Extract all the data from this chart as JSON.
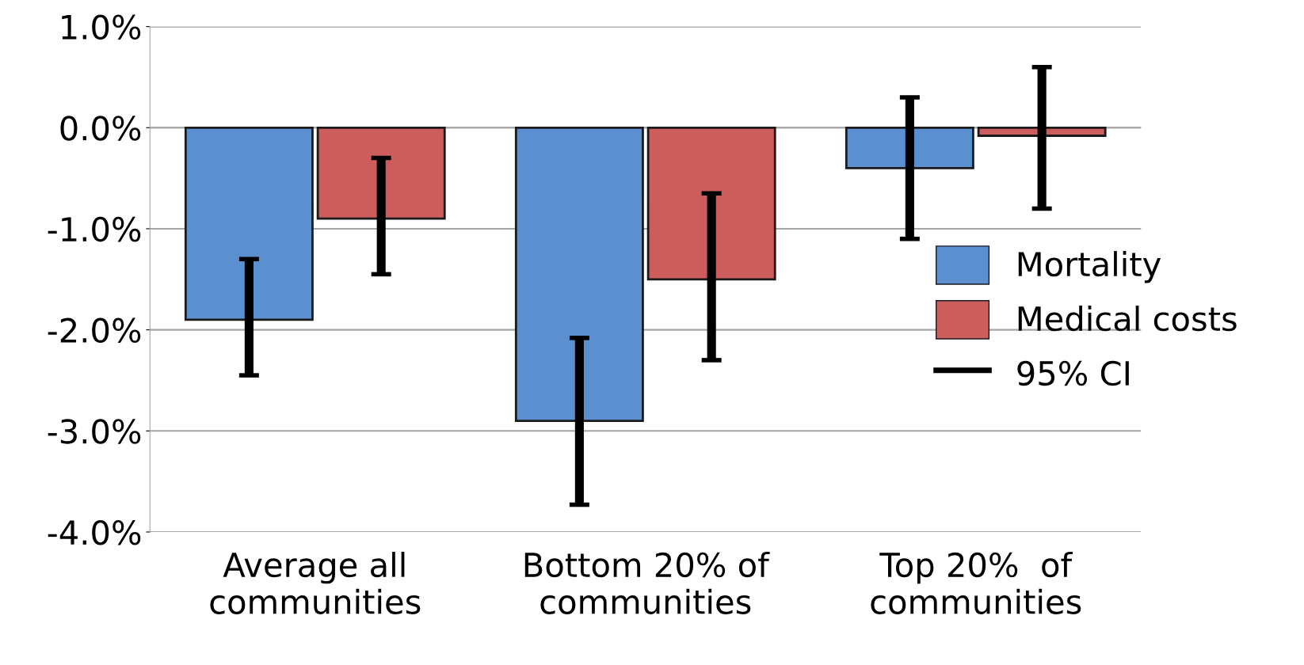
{
  "chart_data": {
    "type": "bar",
    "categories": [
      "Average all\ncommunities",
      "Bottom 20% of\ncommunities",
      "Top 20%  of\ncommunities"
    ],
    "series": [
      {
        "name": "Mortality",
        "color": "#5b8fd0",
        "values": [
          -1.9,
          -2.9,
          -0.4
        ],
        "errors": [
          [
            -2.45,
            -1.3
          ],
          [
            -3.73,
            -2.08
          ],
          [
            -1.1,
            0.3
          ]
        ]
      },
      {
        "name": "Medical costs",
        "color": "#cd5c5c",
        "values": [
          -0.9,
          -1.5,
          -0.08
        ],
        "errors": [
          [
            -1.45,
            -0.3
          ],
          [
            -2.3,
            -0.65
          ],
          [
            -0.8,
            0.6
          ]
        ]
      }
    ],
    "annotations": [
      "95% CI"
    ],
    "ylim": [
      -4.0,
      1.0
    ],
    "yticks": [
      {
        "value": -4.0,
        "label": "-4.0%"
      },
      {
        "value": -3.0,
        "label": "-3.0%"
      },
      {
        "value": -2.0,
        "label": "-2.0%"
      },
      {
        "value": -1.0,
        "label": "-1.0%"
      },
      {
        "value": 0.0,
        "label": "0.0%"
      },
      {
        "value": 1.0,
        "label": "1.0%"
      }
    ],
    "grid": "y",
    "legend": "right"
  }
}
